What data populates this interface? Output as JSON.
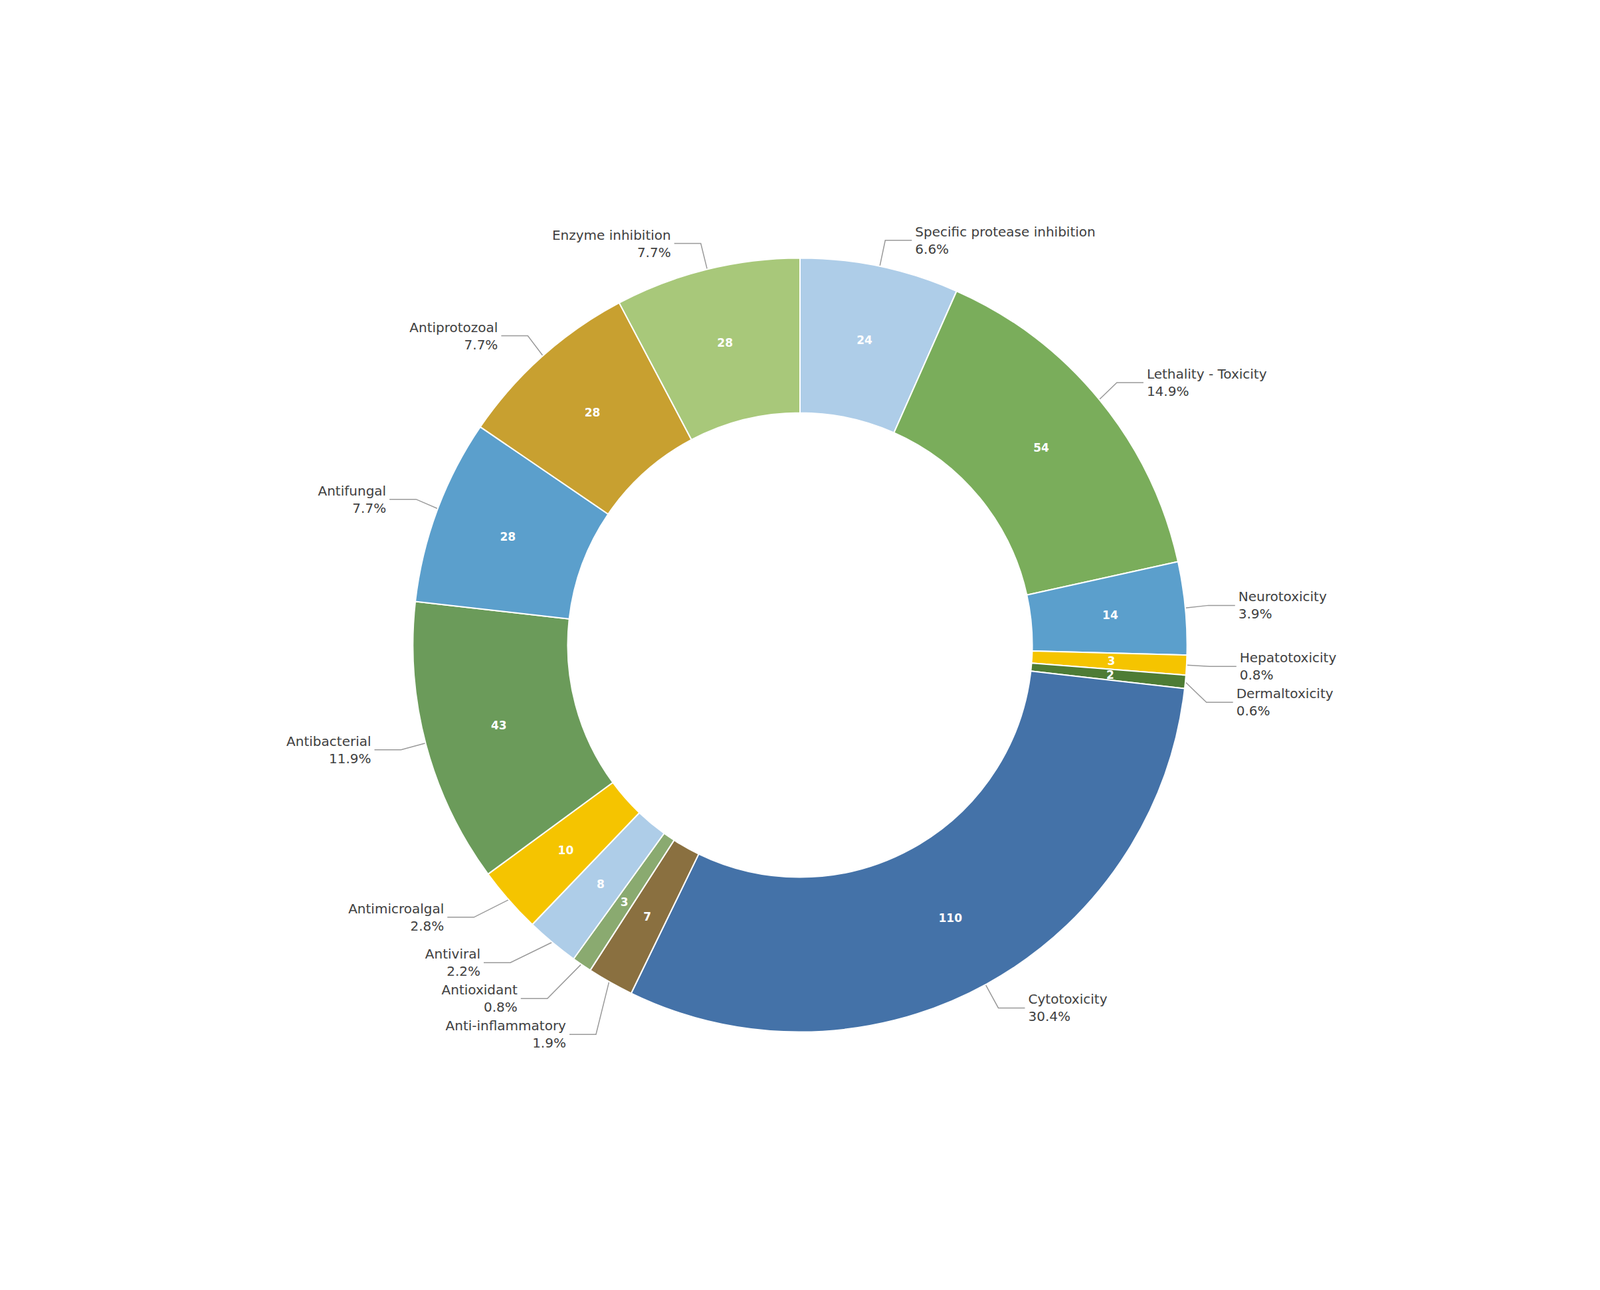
{
  "chart_data": {
    "type": "donut",
    "categories": [
      "Specific protease inhibition",
      "Lethality - Toxicity",
      "Neurotoxicity",
      "Hepatotoxicity",
      "Dermaltoxicity",
      "Cytotoxicity",
      "Anti-inflammatory",
      "Antioxidant",
      "Antiviral",
      "Antimicroalgal",
      "Antibacterial",
      "Antifungal",
      "Antiprotozoal",
      "Enzyme inhibition"
    ],
    "values": [
      24,
      54,
      14,
      3,
      2,
      110,
      7,
      3,
      8,
      10,
      43,
      28,
      28,
      28
    ],
    "colors": [
      "#aecde8",
      "#7aad5b",
      "#5b9fcc",
      "#f5c400",
      "#4e7c35",
      "#4472a8",
      "#8a7040",
      "#8aaa70",
      "#aecde8",
      "#f5c400",
      "#6b9b5a",
      "#5b9fcc",
      "#c8a030",
      "#a8c87a"
    ],
    "data_labels": true,
    "percentages": [
      {
        "value": 6.6,
        "label": "6.6%"
      },
      {
        "value": 14.9,
        "label": "14.9%"
      },
      {
        "value": 3.9,
        "label": "3.9%"
      },
      {
        "value": 0.8,
        "label": "0.8%"
      },
      {
        "value": 0.6,
        "label": "0.6%"
      },
      {
        "value": 30.4,
        "label": "30.4%"
      },
      {
        "value": 1.9,
        "label": "1.9%"
      },
      {
        "value": 0.8,
        "label": "0.8%"
      },
      {
        "value": 2.2,
        "label": "2.2%"
      },
      {
        "value": 2.8,
        "label": "2.8%"
      },
      {
        "value": 11.9,
        "label": "11.9%"
      },
      {
        "value": 7.7,
        "label": "7.7%"
      },
      {
        "value": 7.7,
        "label": "7.7%"
      },
      {
        "value": 7.7,
        "label": "7.7%"
      }
    ]
  }
}
